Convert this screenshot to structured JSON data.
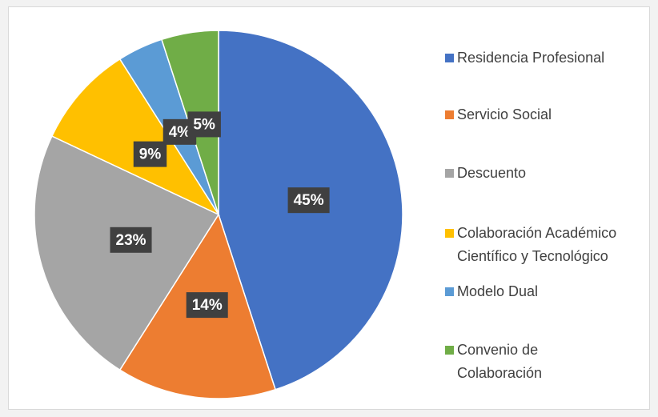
{
  "chart_data": {
    "type": "pie",
    "categories": [
      "Residencia Profesional",
      "Servicio Social",
      "Descuento",
      "Colaboración Académico Científico y Tecnológico",
      "Modelo Dual",
      "Convenio de Colaboración"
    ],
    "values": [
      45,
      14,
      23,
      9,
      4,
      5
    ],
    "value_labels": [
      "45%",
      "14%",
      "23%",
      "9%",
      "4%",
      "5%"
    ],
    "colors": [
      "#4472c4",
      "#ed7d31",
      "#a5a5a5",
      "#ffc000",
      "#5b9bd5",
      "#70ad47"
    ],
    "legend": "right"
  }
}
